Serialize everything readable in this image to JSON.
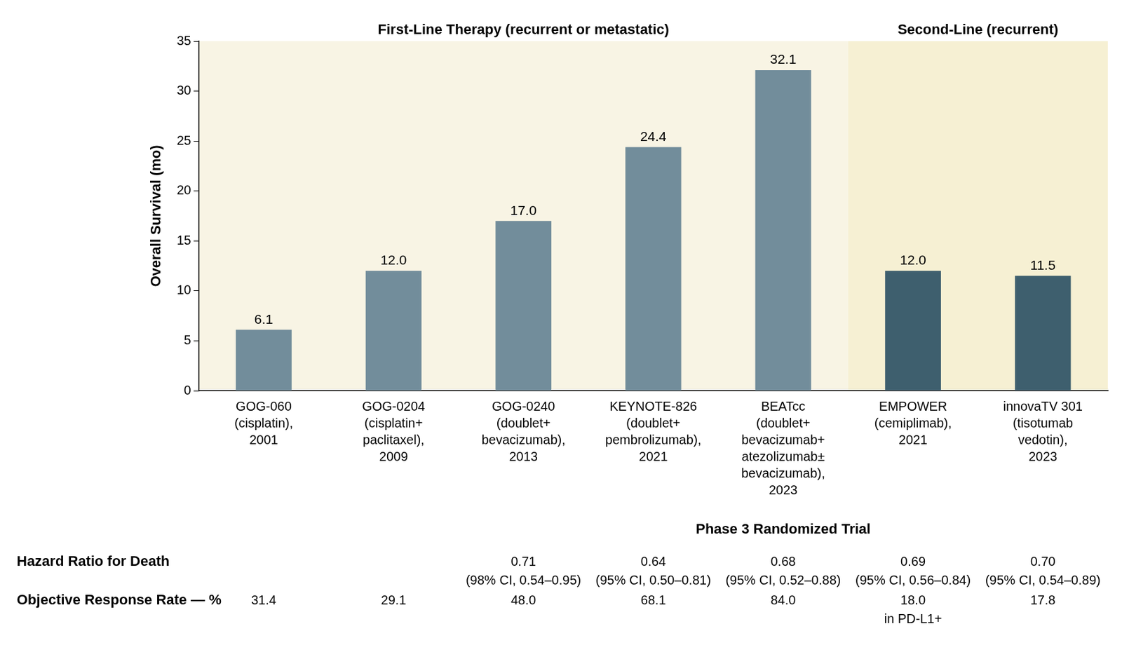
{
  "chart_data": {
    "type": "bar",
    "y_label": "Overall Survival (mo)",
    "groups": [
      {
        "label": "First-Line Therapy (recurrent or metastatic)",
        "first": 0,
        "last": 4,
        "color": "#f8f4e4"
      },
      {
        "label": "Second-Line (recurrent)",
        "first": 5,
        "last": 6,
        "color": "#f6f0d3"
      }
    ],
    "categories": [
      [
        "GOG-060",
        "(cisplatin),",
        "2001"
      ],
      [
        "GOG-0204",
        "(cisplatin+",
        "paclitaxel),",
        "2009"
      ],
      [
        "GOG-0240",
        "(doublet+",
        "bevacizumab),",
        "2013"
      ],
      [
        "KEYNOTE-826",
        "(doublet+",
        "pembrolizumab),",
        "2021"
      ],
      [
        "BEATcc",
        "(doublet+",
        "bevacizumab+",
        "atezolizumab±",
        "bevacizumab),",
        "2023"
      ],
      [
        "EMPOWER",
        "(cemiplimab),",
        "2021"
      ],
      [
        "innovaTV 301",
        "(tisotumab",
        "vedotin),",
        "2023"
      ]
    ],
    "values": [
      6.1,
      12.0,
      17.0,
      24.4,
      32.1,
      12.0,
      11.5
    ],
    "value_labels": [
      "6.1",
      "12.0",
      "17.0",
      "24.4",
      "32.1",
      "12.0",
      "11.5"
    ],
    "colors": [
      "#728d9b",
      "#728d9b",
      "#728d9b",
      "#728d9b",
      "#728d9b",
      "#3e5f6e",
      "#3e5f6e"
    ],
    "ylim": [
      0,
      35
    ],
    "yticks": [
      0,
      5,
      10,
      15,
      20,
      25,
      30,
      35
    ],
    "grid": false,
    "data_labels": true
  },
  "table": {
    "title": "Phase 3 Randomized Trial",
    "rows": [
      {
        "label": "Hazard Ratio for Death",
        "cells": [
          null,
          null,
          [
            "0.71",
            "(98% CI, 0.54–0.95)"
          ],
          [
            "0.64",
            "(95% CI, 0.50–0.81)"
          ],
          [
            "0.68",
            "(95% CI, 0.52–0.88)"
          ],
          [
            "0.69",
            "(95% CI, 0.56–0.84)"
          ],
          [
            "0.70",
            "(95% CI, 0.54–0.89)"
          ]
        ]
      },
      {
        "label": "Objective Response Rate — %",
        "cells": [
          [
            "31.4"
          ],
          [
            "29.1"
          ],
          [
            "48.0"
          ],
          [
            "68.1"
          ],
          [
            "84.0"
          ],
          [
            "18.0",
            "in PD-L1+"
          ],
          [
            "17.8"
          ]
        ]
      }
    ]
  }
}
